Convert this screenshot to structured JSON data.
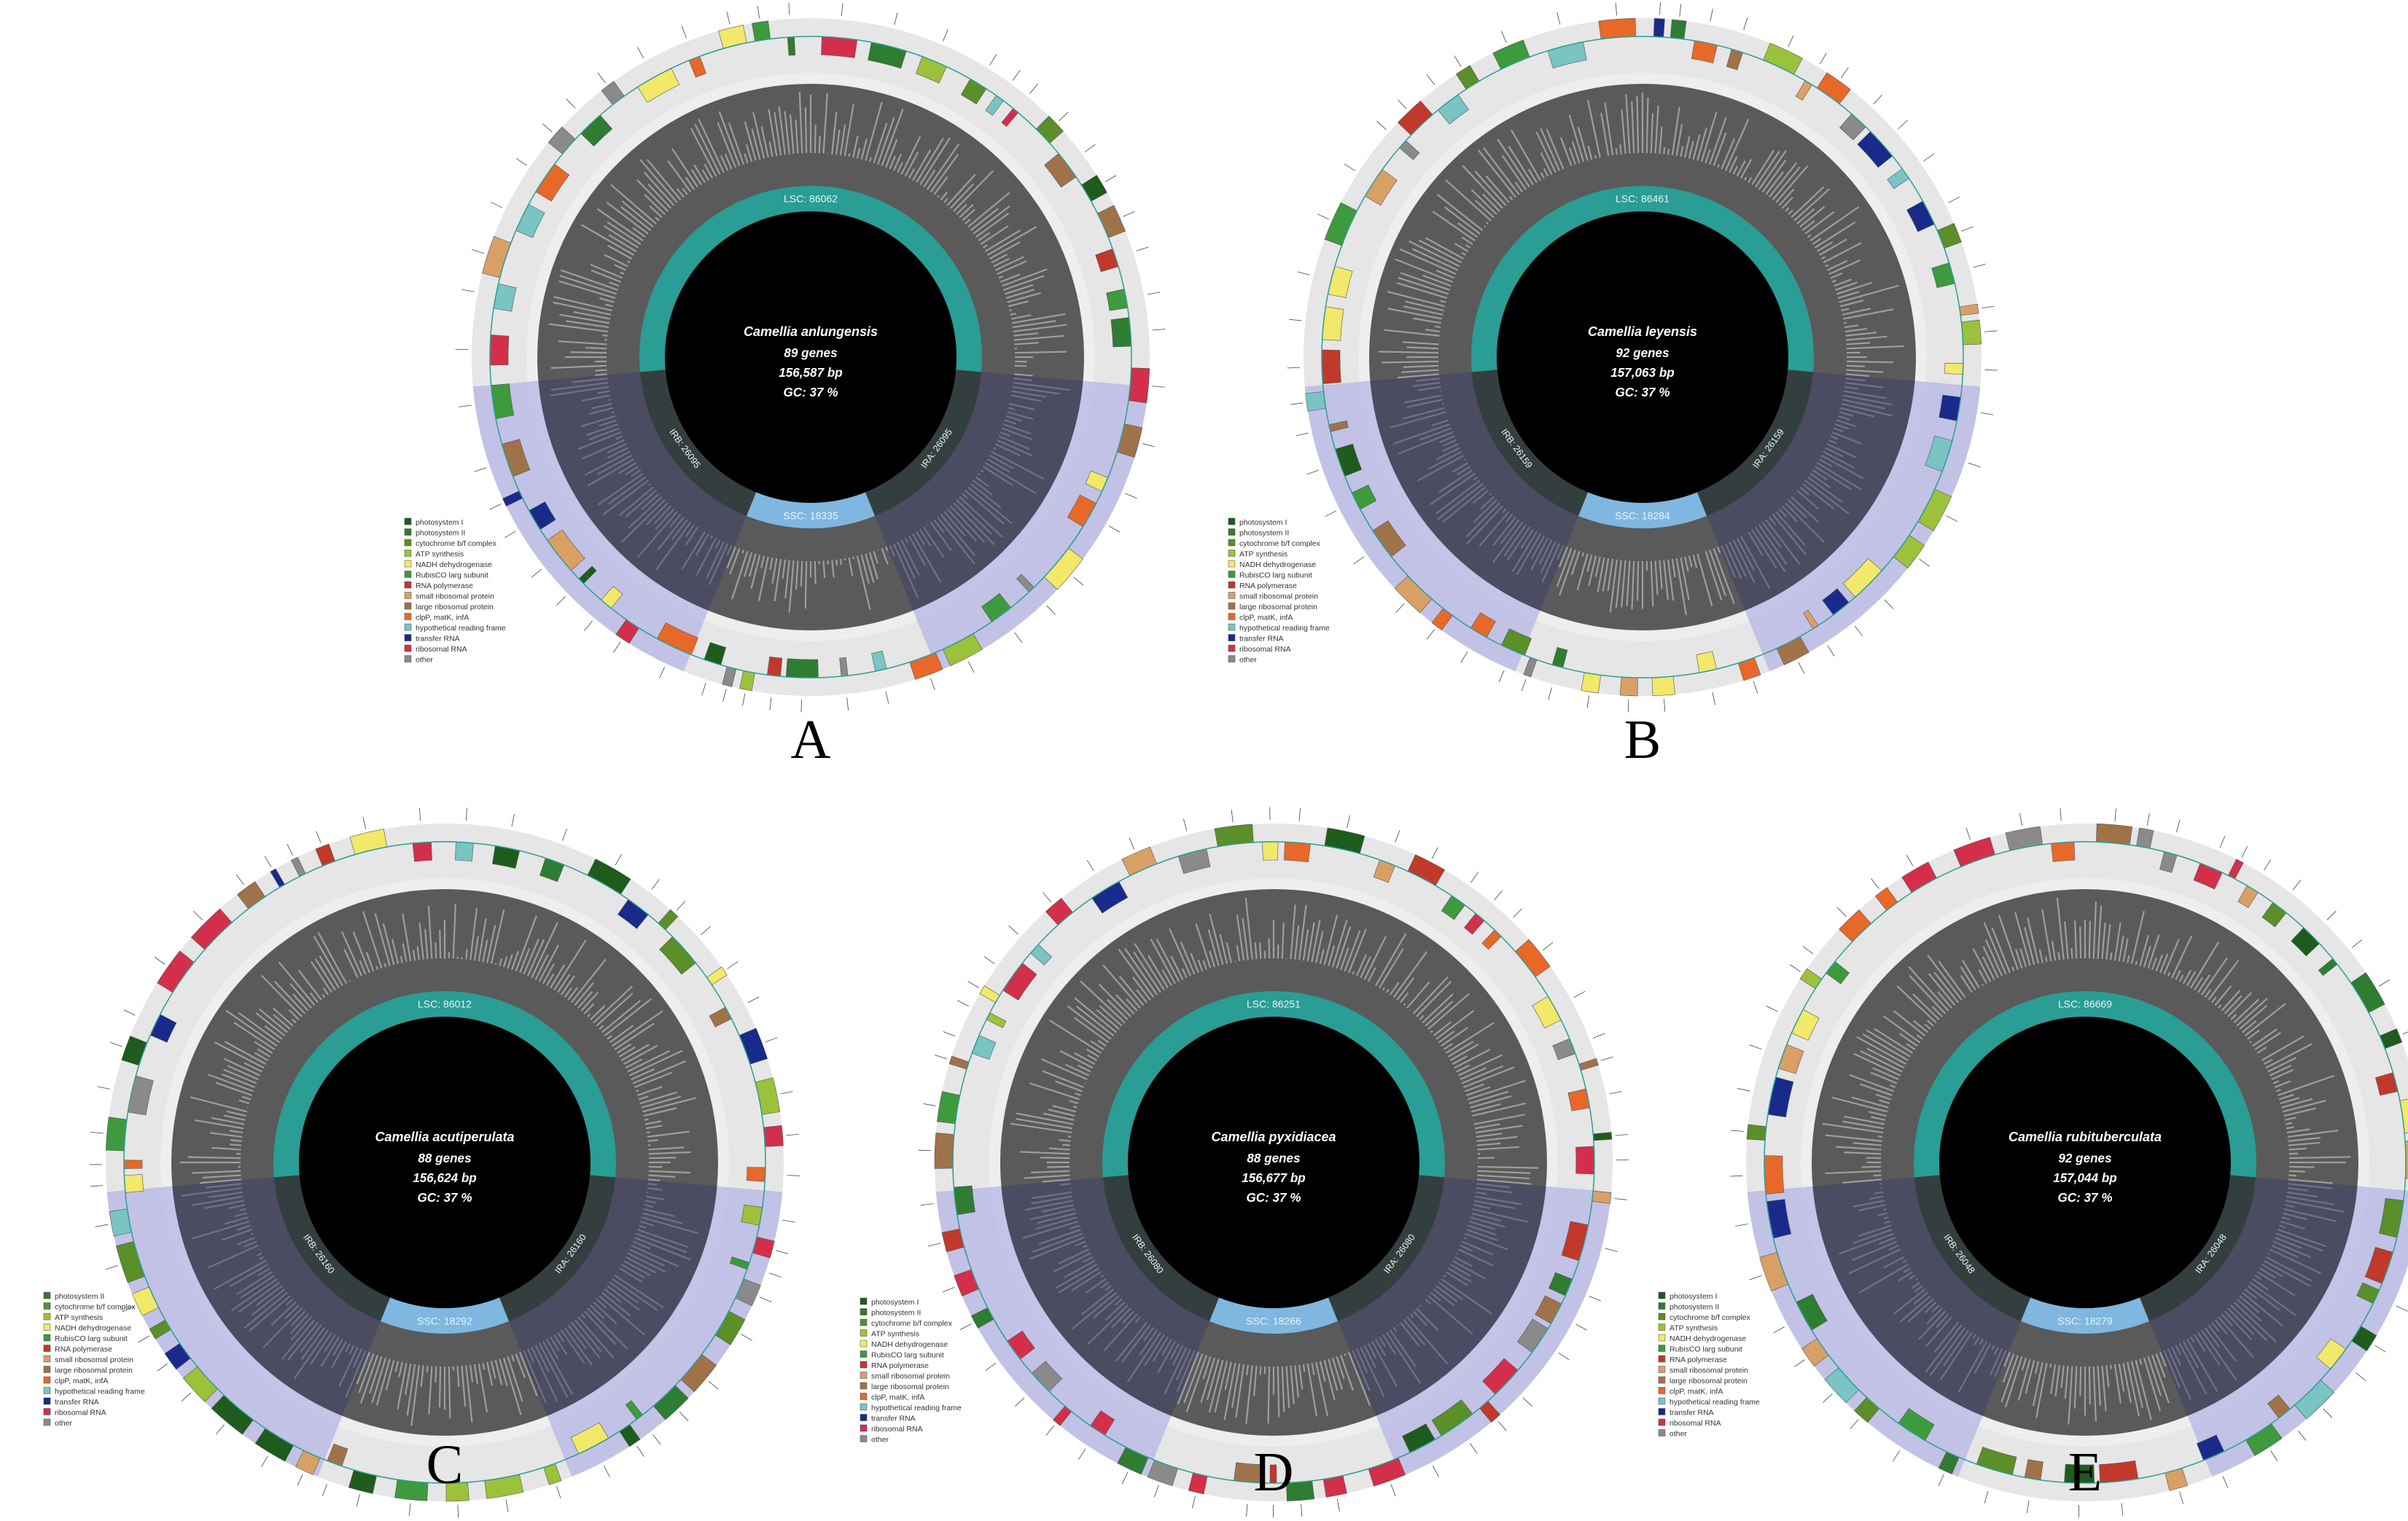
{
  "panels": [
    {
      "letter": "A",
      "species": "Camellia anlungensis",
      "genes": "89 genes",
      "length": "156,587 bp",
      "gc": "GC: 37 %",
      "lsc": "LSC: 86062",
      "ssc": "SSC: 18335",
      "ira": "IRA: 26095",
      "irb": "IRB: 26095",
      "legend_count": 15
    },
    {
      "letter": "B",
      "species": "Camellia leyensis",
      "genes": "92 genes",
      "length": "157,063 bp",
      "gc": "GC: 37 %",
      "lsc": "LSC: 86461",
      "ssc": "SSC: 18284",
      "ira": "IRA: 26159",
      "irb": "IRB: 26159",
      "legend_count": 15
    },
    {
      "letter": "C",
      "species": "Camellia acutiperulata",
      "genes": "88 genes",
      "length": "156,624 bp",
      "gc": "GC: 37 %",
      "lsc": "LSC: 86012",
      "ssc": "SSC: 18292",
      "ira": "IRA: 26160",
      "irb": "IRB: 26160",
      "legend_count": 14
    },
    {
      "letter": "D",
      "species": "Camellia pyxidiacea",
      "genes": "88 genes",
      "length": "156,677 bp",
      "gc": "GC: 37 %",
      "lsc": "LSC: 86251",
      "ssc": "SSC: 18266",
      "ira": "IRA: 26080",
      "irb": "IRB: 26080",
      "legend_count": 15
    },
    {
      "letter": "E",
      "species": "Camellia rubituberculata",
      "genes": "92 genes",
      "length": "157,044 bp",
      "gc": "GC: 37 %",
      "lsc": "LSC: 86669",
      "ssc": "SSC: 18279",
      "ira": "IRA: 26048",
      "irb": "IRB: 26048",
      "legend_count": 15
    }
  ],
  "legend": [
    {
      "label": "photosystem I",
      "color": "#1d5c1d"
    },
    {
      "label": "photosystem II",
      "color": "#2e7d32"
    },
    {
      "label": "cytochrome b/f complex",
      "color": "#5a8f29"
    },
    {
      "label": "ATP synthesis",
      "color": "#9bc23a"
    },
    {
      "label": "NADH dehydrogenase",
      "color": "#f2e86a"
    },
    {
      "label": "RubisCO larg subunit",
      "color": "#3d9a3d"
    },
    {
      "label": "RNA polymerase",
      "color": "#c0392b"
    },
    {
      "label": "small ribosomal protein",
      "color": "#d9a066"
    },
    {
      "label": "large ribosomal protein",
      "color": "#a0724a"
    },
    {
      "label": "clpP, matK, infA",
      "color": "#e8682a"
    },
    {
      "label": "hypothetical reading frame",
      "color": "#7ac4c4"
    },
    {
      "label": "transfer RNA",
      "color": "#1a2a8a"
    },
    {
      "label": "ribosomal RNA",
      "color": "#d32f4a"
    },
    {
      "label": "other",
      "color": "#8a8a8a"
    }
  ],
  "legend_c": [
    {
      "label": "photosystem II",
      "color": "#2e7d32"
    },
    {
      "label": "cytochrome b/f complex",
      "color": "#5a8f29"
    },
    {
      "label": "ATP synthesis",
      "color": "#9bc23a"
    },
    {
      "label": "NADH dehydrogenase",
      "color": "#f2e86a"
    },
    {
      "label": "RubisCO larg subunit",
      "color": "#3d9a3d"
    },
    {
      "label": "RNA polymerase",
      "color": "#c0392b"
    },
    {
      "label": "small ribosomal protein",
      "color": "#d9a066"
    },
    {
      "label": "large ribosomal protein",
      "color": "#a0724a"
    },
    {
      "label": "clpP, matK, infA",
      "color": "#e8682a"
    },
    {
      "label": "hypothetical reading frame",
      "color": "#7ac4c4"
    },
    {
      "label": "transfer RNA",
      "color": "#1a2a8a"
    },
    {
      "label": "ribosomal RNA",
      "color": "#d32f4a"
    },
    {
      "label": "other",
      "color": "#8a8a8a"
    }
  ],
  "colors": {
    "core": "#000000",
    "lsc_ring": "#2a9d94",
    "ssc_ring": "#7fb7e0",
    "ir_ring": "#333f3f",
    "gc_dark": "#5a5a5a",
    "gc_light": "#a9a9a9",
    "ir_shade": "#b9b9e6",
    "outer_ring": "#e6e6e6"
  }
}
